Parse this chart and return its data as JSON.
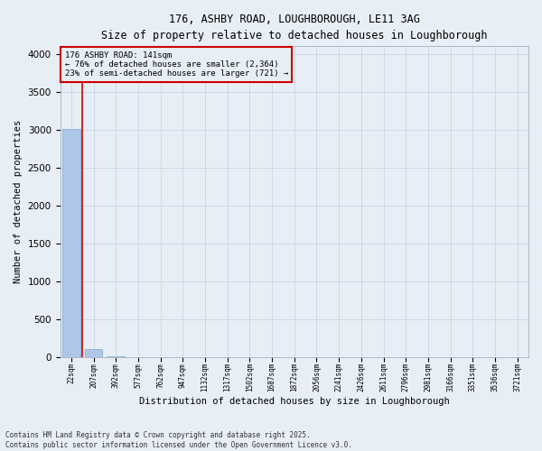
{
  "title_line1": "176, ASHBY ROAD, LOUGHBOROUGH, LE11 3AG",
  "title_line2": "Size of property relative to detached houses in Loughborough",
  "xlabel": "Distribution of detached houses by size in Loughborough",
  "ylabel": "Number of detached properties",
  "footer_line1": "Contains HM Land Registry data © Crown copyright and database right 2025.",
  "footer_line2": "Contains public sector information licensed under the Open Government Licence v3.0.",
  "annotation_line1": "176 ASHBY ROAD: 141sqm",
  "annotation_line2": "← 76% of detached houses are smaller (2,364)",
  "annotation_line3": "23% of semi-detached houses are larger (721) →",
  "categories": [
    "22sqm",
    "207sqm",
    "392sqm",
    "577sqm",
    "762sqm",
    "947sqm",
    "1132sqm",
    "1317sqm",
    "1502sqm",
    "1687sqm",
    "1872sqm",
    "2056sqm",
    "2241sqm",
    "2426sqm",
    "2611sqm",
    "2796sqm",
    "2981sqm",
    "3166sqm",
    "3351sqm",
    "3536sqm",
    "3721sqm"
  ],
  "values": [
    3010,
    110,
    5,
    3,
    2,
    1,
    1,
    1,
    1,
    1,
    1,
    1,
    1,
    1,
    0,
    0,
    0,
    0,
    0,
    0,
    0
  ],
  "bar_color": "#aec6e8",
  "bar_edge_color": "#7aaac8",
  "grid_color": "#d0d8e8",
  "background_color": "#e8eef5",
  "red_line_color": "#cc0000",
  "red_line_x": 0.5,
  "annotation_box_edgecolor": "#cc0000",
  "ylim": [
    0,
    4100
  ],
  "yticks": [
    0,
    500,
    1000,
    1500,
    2000,
    2500,
    3000,
    3500,
    4000
  ]
}
